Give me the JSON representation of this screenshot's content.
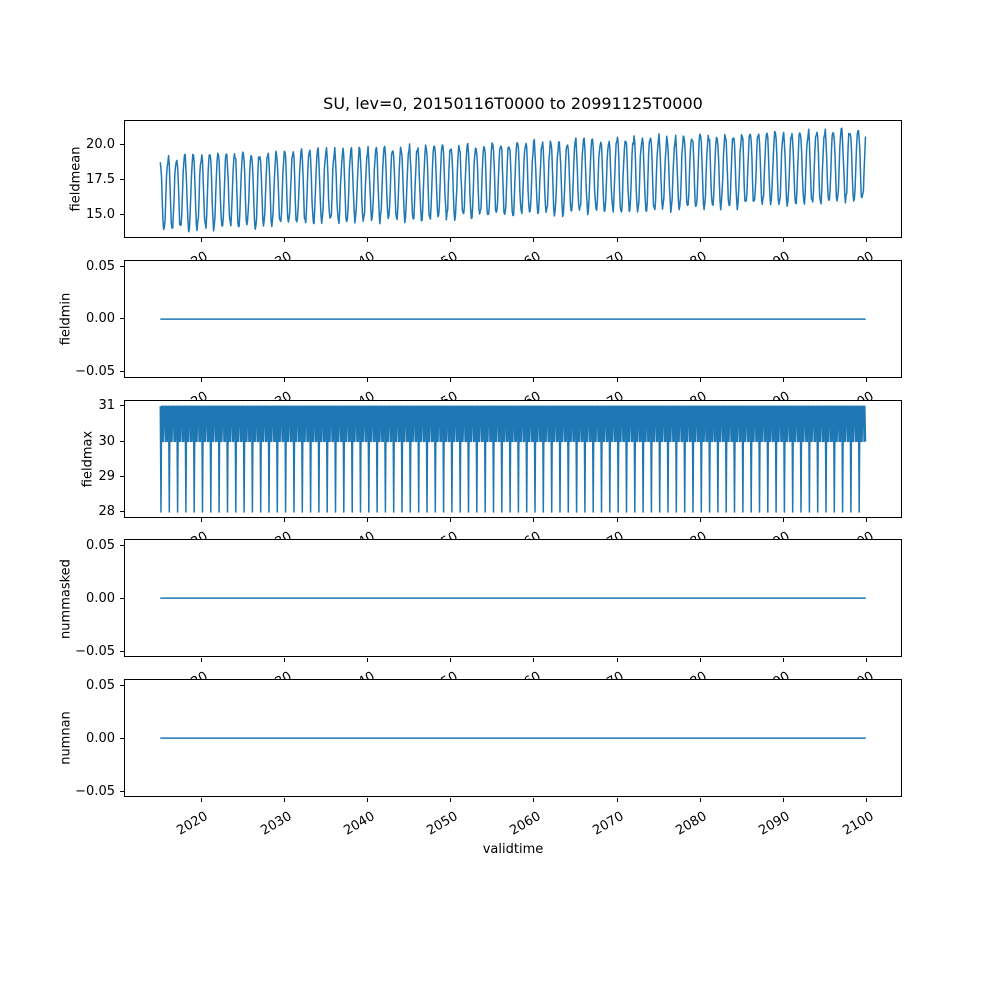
{
  "title": "SU, lev=0, 20150116T0000 to 20991125T0000",
  "xlabel": "validtime",
  "colors": {
    "line": "#1f77b4",
    "axes_edge": "#000000",
    "text": "#000000",
    "background": "#ffffff"
  },
  "chart_data": {
    "type": "line",
    "title": "SU, lev=0, 20150116T0000 to 20991125T0000",
    "xlabel": "validtime",
    "legend": "none",
    "grid": false,
    "x": {
      "label": "validtime",
      "lim": [
        2010.8,
        2104.15
      ],
      "ticks": [
        2020,
        2030,
        2040,
        2050,
        2060,
        2070,
        2080,
        2090,
        2100
      ],
      "tick_labels": [
        "2020",
        "2030",
        "2040",
        "2050",
        "2060",
        "2070",
        "2080",
        "2090",
        "2100"
      ],
      "tick_rotation_deg": 30,
      "start": {
        "value_year": 2015.042,
        "label": "20150116T0000"
      },
      "end": {
        "value_year": 2099.899,
        "label": "20991125T0000"
      },
      "sampling": "monthly"
    },
    "subplots": [
      {
        "name": "fieldmean",
        "ylabel": "fieldmean",
        "ylim": [
          13.35,
          21.65
        ],
        "ytick_values": [
          15.0,
          17.5,
          20.0
        ],
        "ytick_labels": [
          "15.0",
          "17.5",
          "20.0"
        ],
        "series": {
          "kind": "seasonal_trend",
          "base_start": 16.55,
          "trend_per_year": 0.024,
          "monthly_shape": [
            2.45,
            1.9,
            0.7,
            -0.9,
            -2.1,
            -2.6,
            -2.45,
            -1.8,
            -0.4,
            1.0,
            1.95,
            2.35
          ],
          "noise_amp": 0.3,
          "seed": 7
        },
        "summary": {
          "min": 13.9,
          "max": 21.3,
          "annual_mean_2015": 16.6,
          "annual_mean_2099": 18.6,
          "oscillation": "annual cycle, amplitude ~5 peak-to-trough, slow upward trend"
        }
      },
      {
        "name": "fieldmin",
        "ylabel": "fieldmin",
        "ylim": [
          -0.055,
          0.055
        ],
        "ytick_values": [
          -0.05,
          0.0,
          0.05
        ],
        "ytick_labels": [
          "−0.05",
          "0.00",
          "0.05"
        ],
        "series": {
          "kind": "flat",
          "value": 0
        },
        "summary": {
          "min": 0,
          "max": 0,
          "constant": 0
        }
      },
      {
        "name": "fieldmax",
        "ylabel": "fieldmax",
        "ylim": [
          27.85,
          31.15
        ],
        "ytick_values": [
          28,
          29,
          30,
          31
        ],
        "ytick_labels": [
          "28",
          "29",
          "30",
          "31"
        ],
        "series": {
          "kind": "monthly_pattern",
          "monthly_values": [
            31,
            28,
            31,
            30,
            31,
            30,
            31,
            31,
            30,
            31,
            30,
            31
          ]
        },
        "summary": {
          "min": 28,
          "max": 31,
          "pattern": "alternates 30/31 forming solid band, dips to 28 every February"
        }
      },
      {
        "name": "nummasked",
        "ylabel": "nummasked",
        "ylim": [
          -0.055,
          0.055
        ],
        "ytick_values": [
          -0.05,
          0.0,
          0.05
        ],
        "ytick_labels": [
          "−0.05",
          "0.00",
          "0.05"
        ],
        "series": {
          "kind": "flat",
          "value": 0
        },
        "summary": {
          "min": 0,
          "max": 0,
          "constant": 0
        }
      },
      {
        "name": "numnan",
        "ylabel": "numnan",
        "ylim": [
          -0.055,
          0.055
        ],
        "ytick_values": [
          -0.05,
          0.0,
          0.05
        ],
        "ytick_labels": [
          "−0.05",
          "0.00",
          "0.05"
        ],
        "series": {
          "kind": "flat",
          "value": 0
        },
        "summary": {
          "min": 0,
          "max": 0,
          "constant": 0
        }
      }
    ]
  }
}
